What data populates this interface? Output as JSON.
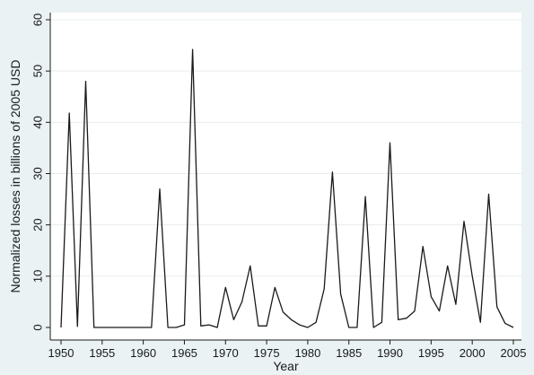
{
  "chart_data": {
    "type": "line",
    "xlabel": "Year",
    "ylabel": "Normalized losses in billions of 2005 USD",
    "xlim": [
      1950,
      2005
    ],
    "ylim": [
      0,
      60
    ],
    "xticks": [
      1950,
      1955,
      1960,
      1965,
      1970,
      1975,
      1980,
      1985,
      1990,
      1995,
      2000,
      2005
    ],
    "yticks": [
      0,
      10,
      20,
      30,
      40,
      50,
      60
    ],
    "grid": "horizontal",
    "colors": {
      "line": "#1a1a1a",
      "plot_bg": "#ffffff",
      "outer_bg": "#eaf2f3",
      "grid": "#e6ecee"
    },
    "series": [
      {
        "x": [
          1950,
          1951,
          1952,
          1953,
          1954,
          1955,
          1956,
          1957,
          1958,
          1959,
          1960,
          1961,
          1962,
          1963,
          1964,
          1965,
          1966,
          1967,
          1968,
          1969,
          1970,
          1971,
          1972,
          1973,
          1974,
          1975,
          1976,
          1977,
          1978,
          1979,
          1980,
          1981,
          1982,
          1983,
          1984,
          1985,
          1986,
          1987,
          1988,
          1989,
          1990,
          1991,
          1992,
          1993,
          1994,
          1995,
          1996,
          1997,
          1998,
          1999,
          2000,
          2001,
          2002,
          2003,
          2004,
          2005
        ],
        "values": [
          0,
          41.8,
          0.2,
          48,
          0,
          0,
          0,
          0,
          0,
          0,
          0,
          0,
          27,
          0,
          0,
          0.5,
          54.2,
          0.3,
          0.5,
          0,
          7.8,
          1.5,
          5,
          12,
          0.3,
          0.3,
          7.8,
          3,
          1.5,
          0.5,
          0,
          1,
          7.5,
          30.3,
          6.5,
          0,
          0,
          25.5,
          0,
          1,
          36,
          1.5,
          1.8,
          3.2,
          15.8,
          6,
          3.2,
          12,
          4.5,
          20.7,
          10,
          1,
          26,
          4,
          0.8,
          0
        ]
      }
    ]
  }
}
